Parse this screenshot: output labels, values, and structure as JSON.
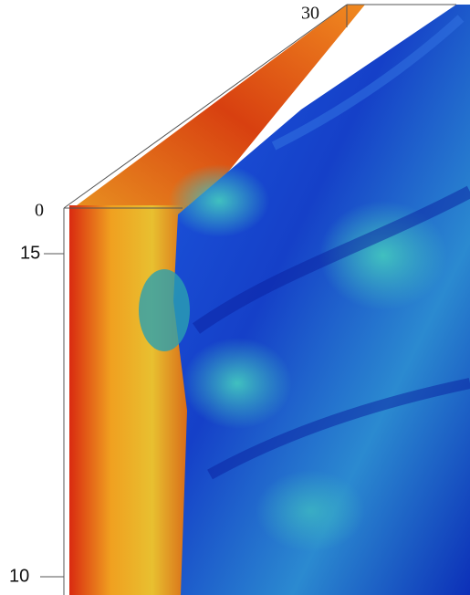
{
  "axis_labels": {
    "back_top": "30",
    "front_top": "0",
    "upper_value": "15",
    "lower_value": "10"
  }
}
